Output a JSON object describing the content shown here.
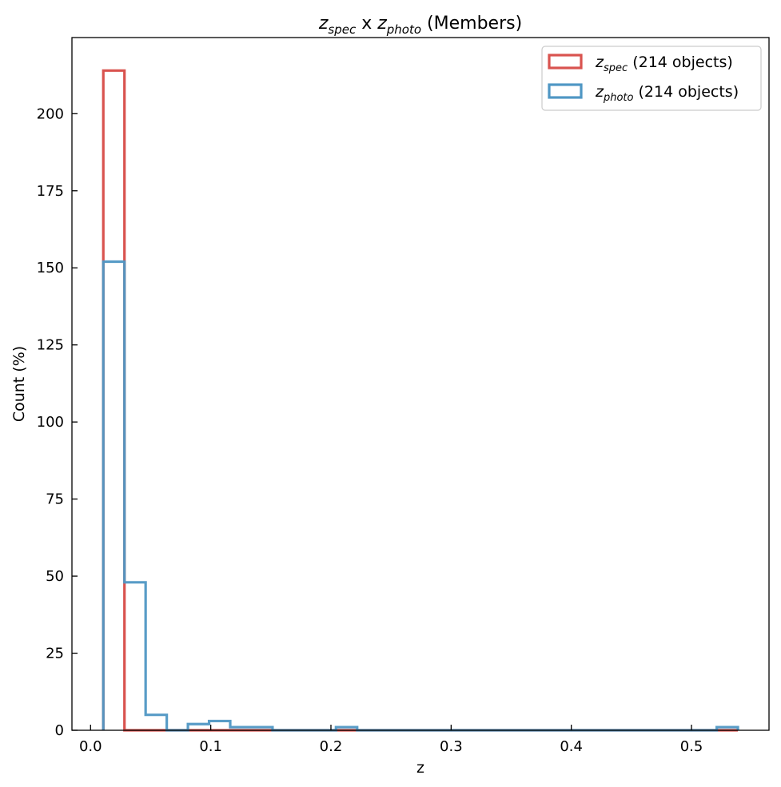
{
  "chart_data": {
    "type": "histogram",
    "title": {
      "parts": [
        {
          "text": "z",
          "style": "italic"
        },
        {
          "text": "spec",
          "style": "italic-sub"
        },
        {
          "text": " x ",
          "style": "normal"
        },
        {
          "text": "z",
          "style": "italic"
        },
        {
          "text": "photo",
          "style": "italic-sub"
        },
        {
          "text": " (Members)",
          "style": "normal"
        }
      ]
    },
    "xlabel": "z",
    "ylabel": "Count (%)",
    "xlim": [
      -0.0155,
      0.5645
    ],
    "ylim": [
      0,
      224.7
    ],
    "xticks": [
      0.0,
      0.1,
      0.2,
      0.3,
      0.4,
      0.5
    ],
    "xtick_labels": [
      "0.0",
      "0.1",
      "0.2",
      "0.3",
      "0.4",
      "0.5"
    ],
    "yticks": [
      0,
      25,
      50,
      75,
      100,
      125,
      150,
      175,
      200
    ],
    "ytick_labels": [
      "0",
      "25",
      "50",
      "75",
      "100",
      "125",
      "150",
      "175",
      "200"
    ],
    "grid": false,
    "legend_position": "top-right",
    "histtype": "step",
    "bin_edges": [
      0.0106,
      0.0282,
      0.0458,
      0.0634,
      0.081,
      0.0986,
      0.1162,
      0.1338,
      0.1514,
      0.169,
      0.1866,
      0.2042,
      0.2218,
      0.2394,
      0.257,
      0.2746,
      0.2922,
      0.3098,
      0.3274,
      0.345,
      0.3626,
      0.3802,
      0.3978,
      0.4154,
      0.433,
      0.4506,
      0.4682,
      0.4858,
      0.5034,
      0.521,
      0.5386
    ],
    "series": [
      {
        "name_parts": [
          {
            "text": "z",
            "style": "italic"
          },
          {
            "text": "spec",
            "style": "italic-sub"
          },
          {
            "text": " (214 objects)",
            "style": "normal"
          }
        ],
        "color": "#d9534f",
        "values": [
          214,
          0,
          0,
          0,
          0,
          0,
          0,
          0,
          0,
          0,
          0,
          0,
          0,
          0,
          0,
          0,
          0,
          0,
          0,
          0,
          0,
          0,
          0,
          0,
          0,
          0,
          0,
          0,
          0,
          0
        ]
      },
      {
        "name_parts": [
          {
            "text": "z",
            "style": "italic"
          },
          {
            "text": "photo",
            "style": "italic-sub"
          },
          {
            "text": " (214 objects)",
            "style": "normal"
          }
        ],
        "color": "#4f97c4",
        "values": [
          152,
          48,
          5,
          0,
          2,
          3,
          1,
          1,
          0,
          0,
          0,
          1,
          0,
          0,
          0,
          0,
          0,
          0,
          0,
          0,
          0,
          0,
          0,
          0,
          0,
          0,
          0,
          0,
          0,
          1
        ]
      }
    ]
  }
}
